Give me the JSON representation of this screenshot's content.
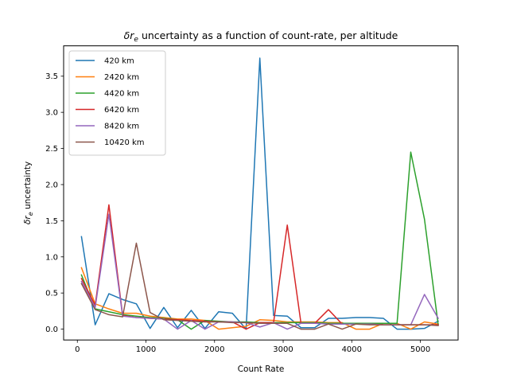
{
  "chart_data": {
    "type": "line",
    "title_symbol": "δr",
    "title_subscript": "e",
    "title_rest": " uncertainty as a function of count-rate, per altitude",
    "xlabel": "Count Rate",
    "ylabel_symbol": "δr",
    "ylabel_subscript": "e",
    "ylabel_rest": " uncertainty",
    "xlim": [
      -200,
      5550
    ],
    "ylim": [
      -0.15,
      3.92
    ],
    "xticks": [
      0,
      1000,
      2000,
      3000,
      4000,
      5000
    ],
    "yticks": [
      0.0,
      0.5,
      1.0,
      1.5,
      2.0,
      2.5,
      3.0,
      3.5
    ],
    "ytick_labels": [
      "0.0",
      "0.5",
      "1.0",
      "1.5",
      "2.0",
      "2.5",
      "3.0",
      "3.5"
    ],
    "grid": false,
    "legend_position": "top-left",
    "x": [
      60,
      260,
      460,
      660,
      860,
      1060,
      1260,
      1460,
      1660,
      1860,
      2060,
      2260,
      2460,
      2660,
      2860,
      3060,
      3260,
      3460,
      3660,
      3860,
      4060,
      4260,
      4460,
      4660,
      4860,
      5060,
      5260
    ],
    "series": [
      {
        "name": "420 km",
        "color": "#1f77b4",
        "values": [
          1.28,
          0.06,
          0.49,
          0.41,
          0.35,
          0.01,
          0.3,
          0.02,
          0.26,
          0.01,
          0.24,
          0.22,
          0.0,
          3.75,
          0.19,
          0.18,
          0.02,
          0.02,
          0.15,
          0.15,
          0.16,
          0.16,
          0.15,
          0.0,
          0.0,
          0.01,
          0.11
        ]
      },
      {
        "name": "2420 km",
        "color": "#ff7f0e",
        "values": [
          0.85,
          0.35,
          0.28,
          0.22,
          0.22,
          0.18,
          0.16,
          0.14,
          0.14,
          0.12,
          0.0,
          0.02,
          0.04,
          0.13,
          0.12,
          0.1,
          0.1,
          0.1,
          0.09,
          0.09,
          0.0,
          0.0,
          0.08,
          0.08,
          0.0,
          0.1,
          0.07
        ]
      },
      {
        "name": "4420 km",
        "color": "#2ca02c",
        "values": [
          0.75,
          0.28,
          0.24,
          0.2,
          0.18,
          0.16,
          0.15,
          0.13,
          0.0,
          0.12,
          0.11,
          0.1,
          0.1,
          0.09,
          0.09,
          0.09,
          0.09,
          0.09,
          0.08,
          0.08,
          0.08,
          0.08,
          0.08,
          0.08,
          2.45,
          1.52,
          0.06
        ]
      },
      {
        "name": "6420 km",
        "color": "#d62728",
        "values": [
          0.7,
          0.33,
          1.72,
          0.19,
          0.16,
          0.15,
          0.14,
          0.13,
          0.12,
          0.11,
          0.1,
          0.1,
          0.0,
          0.09,
          0.09,
          1.44,
          0.08,
          0.08,
          0.27,
          0.07,
          0.07,
          0.07,
          0.06,
          0.06,
          0.06,
          0.06,
          0.06
        ]
      },
      {
        "name": "8420 km",
        "color": "#9467bd",
        "values": [
          0.66,
          0.3,
          1.59,
          0.18,
          0.16,
          0.15,
          0.14,
          0.0,
          0.12,
          0.0,
          0.1,
          0.1,
          0.09,
          0.03,
          0.09,
          0.0,
          0.08,
          0.08,
          0.07,
          0.07,
          0.07,
          0.07,
          0.06,
          0.06,
          0.06,
          0.48,
          0.15
        ]
      },
      {
        "name": "10420 km",
        "color": "#8c564b",
        "values": [
          0.63,
          0.27,
          0.2,
          0.17,
          1.19,
          0.23,
          0.13,
          0.12,
          0.11,
          0.1,
          0.1,
          0.09,
          0.09,
          0.08,
          0.08,
          0.08,
          0.0,
          0.0,
          0.07,
          0.0,
          0.07,
          0.06,
          0.06,
          0.06,
          0.06,
          0.06,
          0.05
        ]
      }
    ]
  }
}
